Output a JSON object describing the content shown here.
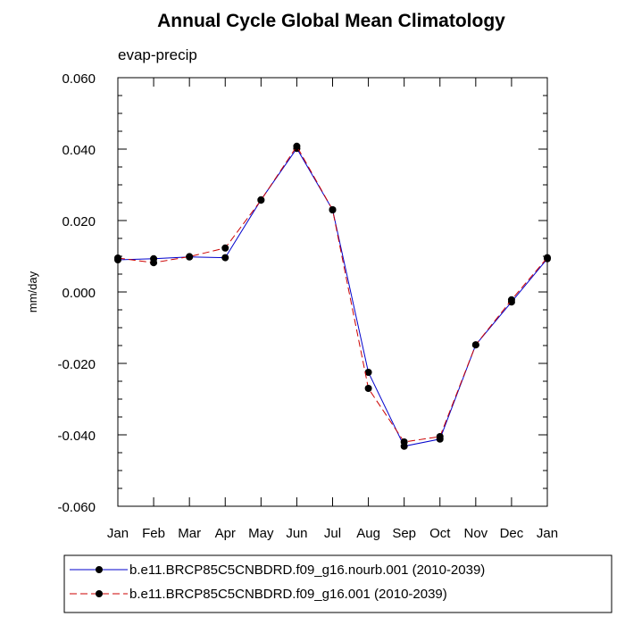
{
  "chart_data": {
    "type": "line",
    "title": "Annual Cycle Global Mean Climatology",
    "subtitle": "evap-precip",
    "xlabel": "",
    "ylabel": "mm/day",
    "categories": [
      "Jan",
      "Feb",
      "Mar",
      "Apr",
      "May",
      "Jun",
      "Jul",
      "Aug",
      "Sep",
      "Oct",
      "Nov",
      "Dec",
      "Jan"
    ],
    "ylim": [
      -0.06,
      0.06
    ],
    "yticks": [
      "0.060",
      "0.040",
      "0.020",
      "0.000",
      "-0.020",
      "-0.040",
      "-0.060"
    ],
    "grid": false,
    "legend_position": "bottom",
    "series": [
      {
        "name": "b.e11.BRCP85C5CNBDRD.f09_g16.nourb.001 (2010-2039)",
        "color": "#0000cc",
        "dash": "solid",
        "values": [
          0.009,
          0.0093,
          0.0098,
          0.0096,
          0.0258,
          0.0402,
          0.023,
          -0.0225,
          -0.0432,
          -0.0412,
          -0.0148,
          -0.0028,
          0.0093
        ]
      },
      {
        "name": "b.e11.BRCP85C5CNBDRD.f09_g16.001 (2010-2039)",
        "color": "#cc0000",
        "dash": "dashed",
        "values": [
          0.0095,
          0.0082,
          0.0099,
          0.0123,
          0.0257,
          0.0408,
          0.023,
          -0.027,
          -0.042,
          -0.0405,
          -0.0148,
          -0.0022,
          0.0096
        ]
      }
    ]
  }
}
